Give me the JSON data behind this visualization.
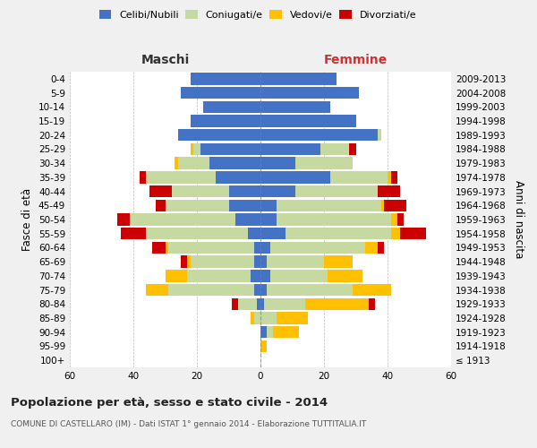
{
  "age_groups": [
    "100+",
    "95-99",
    "90-94",
    "85-89",
    "80-84",
    "75-79",
    "70-74",
    "65-69",
    "60-64",
    "55-59",
    "50-54",
    "45-49",
    "40-44",
    "35-39",
    "30-34",
    "25-29",
    "20-24",
    "15-19",
    "10-14",
    "5-9",
    "0-4"
  ],
  "birth_years": [
    "≤ 1913",
    "1914-1918",
    "1919-1923",
    "1924-1928",
    "1929-1933",
    "1934-1938",
    "1939-1943",
    "1944-1948",
    "1949-1953",
    "1954-1958",
    "1959-1963",
    "1964-1968",
    "1969-1973",
    "1974-1978",
    "1979-1983",
    "1984-1988",
    "1989-1993",
    "1994-1998",
    "1999-2003",
    "2004-2008",
    "2009-2013"
  ],
  "maschi": {
    "celibi": [
      0,
      0,
      0,
      0,
      1,
      2,
      3,
      2,
      2,
      4,
      8,
      10,
      10,
      14,
      16,
      19,
      26,
      22,
      18,
      25,
      22
    ],
    "coniugati": [
      0,
      0,
      0,
      2,
      6,
      27,
      20,
      20,
      27,
      32,
      33,
      20,
      18,
      22,
      10,
      2,
      0,
      0,
      0,
      0,
      0
    ],
    "vedovi": [
      0,
      0,
      0,
      1,
      0,
      7,
      7,
      1,
      1,
      0,
      0,
      0,
      0,
      0,
      1,
      1,
      0,
      0,
      0,
      0,
      0
    ],
    "divorziati": [
      0,
      0,
      0,
      0,
      2,
      0,
      0,
      2,
      4,
      8,
      4,
      3,
      7,
      2,
      0,
      0,
      0,
      0,
      0,
      0,
      0
    ]
  },
  "femmine": {
    "nubili": [
      0,
      0,
      2,
      0,
      1,
      2,
      3,
      2,
      3,
      8,
      5,
      5,
      11,
      22,
      11,
      19,
      37,
      30,
      22,
      31,
      24
    ],
    "coniugate": [
      0,
      0,
      2,
      5,
      13,
      27,
      18,
      18,
      30,
      33,
      36,
      33,
      26,
      18,
      18,
      9,
      1,
      0,
      0,
      0,
      0
    ],
    "vedove": [
      0,
      2,
      8,
      10,
      20,
      12,
      11,
      9,
      4,
      3,
      2,
      1,
      0,
      1,
      0,
      0,
      0,
      0,
      0,
      0,
      0
    ],
    "divorziate": [
      0,
      0,
      0,
      0,
      2,
      0,
      0,
      0,
      2,
      8,
      2,
      7,
      7,
      2,
      0,
      2,
      0,
      0,
      0,
      0,
      0
    ]
  },
  "colors": {
    "celibi": "#4472c4",
    "coniugati": "#c5d9a0",
    "vedovi": "#ffc000",
    "divorziati": "#cc0000"
  },
  "title": "Popolazione per età, sesso e stato civile - 2014",
  "subtitle": "COMUNE DI CASTELLARO (IM) - Dati ISTAT 1° gennaio 2014 - Elaborazione TUTTITALIA.IT",
  "xlabel_left": "Maschi",
  "xlabel_right": "Femmine",
  "ylabel_left": "Fasce di età",
  "ylabel_right": "Anni di nascita",
  "xlim": 60,
  "bg_color": "#f0f0f0",
  "plot_bg": "#ffffff",
  "grid_color": "#bbbbbb"
}
